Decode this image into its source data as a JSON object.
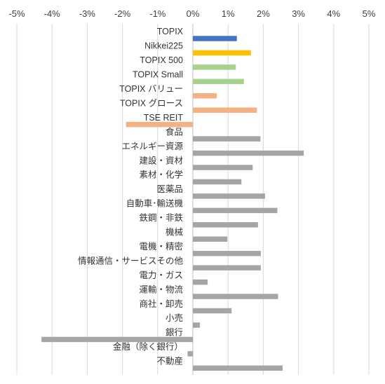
{
  "chart_data": {
    "type": "bar",
    "orientation": "horizontal",
    "title": "",
    "xlabel": "",
    "ylabel": "",
    "xlim": [
      -5,
      5
    ],
    "xticks": [
      -5,
      -4,
      -3,
      -2,
      -1,
      0,
      1,
      2,
      3,
      4,
      5
    ],
    "xtick_labels": [
      "-5%",
      "-4%",
      "-3%",
      "-2%",
      "-1%",
      "0%",
      "1%",
      "2%",
      "3%",
      "4%",
      "5%"
    ],
    "axis_position": "top",
    "grid": "vertical",
    "legend": "none",
    "categories": [
      "TOPIX",
      "Nikkei225",
      "TOPIX 500",
      "TOPIX Small",
      "TOPIX バリュー",
      "TOPIX グロース",
      "TSE REIT",
      "食品",
      "エネルギー資源",
      "建設・資材",
      "素材・化学",
      "医薬品",
      "自動車･輸送機",
      "鉄鋼・非鉄",
      "機械",
      "電機・精密",
      "情報通信・サービスその他",
      "電力・ガス",
      "運輸・物流",
      "商社・卸売",
      "小売",
      "銀行",
      "金融（除く銀行）",
      "不動産"
    ],
    "values": [
      1.25,
      1.65,
      1.22,
      1.45,
      0.68,
      1.82,
      -1.9,
      1.92,
      3.15,
      1.7,
      1.38,
      2.05,
      2.4,
      1.85,
      0.98,
      1.93,
      1.93,
      0.42,
      2.42,
      1.1,
      0.2,
      -4.3,
      -0.15,
      2.55
    ],
    "colors": [
      "#4472c4",
      "#ffc000",
      "#a9d18e",
      "#a9d18e",
      "#f4b183",
      "#f4b183",
      "#f4b183",
      "#a5a5a5",
      "#a5a5a5",
      "#a5a5a5",
      "#a5a5a5",
      "#a5a5a5",
      "#a5a5a5",
      "#a5a5a5",
      "#a5a5a5",
      "#a5a5a5",
      "#a5a5a5",
      "#a5a5a5",
      "#a5a5a5",
      "#a5a5a5",
      "#a5a5a5",
      "#a5a5a5",
      "#a5a5a5",
      "#a5a5a5"
    ]
  }
}
